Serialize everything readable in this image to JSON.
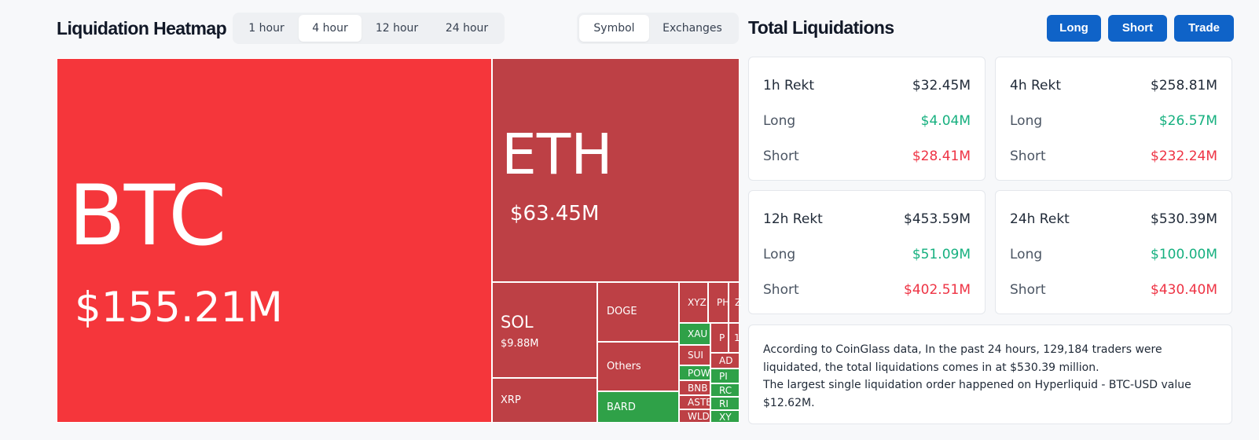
{
  "header": {
    "heatmap_title": "Liquidation Heatmap",
    "time_tabs": [
      {
        "label": "1 hour",
        "active": false
      },
      {
        "label": "4 hour",
        "active": true
      },
      {
        "label": "12 hour",
        "active": false
      },
      {
        "label": "24 hour",
        "active": false
      }
    ],
    "view_tabs": [
      {
        "label": "Symbol",
        "active": true
      },
      {
        "label": "Exchanges",
        "active": false
      }
    ],
    "total_title": "Total Liquidations",
    "actions": [
      "Long",
      "Short",
      "Trade"
    ]
  },
  "colors": {
    "btc_red": "#f5363b",
    "dark_red": "#bd4045",
    "green": "#2fa148",
    "button_blue": "#0f63c8",
    "positive_text": "#16b07f",
    "negative_text": "#ee3344"
  },
  "heatmap": {
    "tiles": [
      {
        "symbol": "BTC",
        "value": "$155.21M",
        "color": "btc_red"
      },
      {
        "symbol": "ETH",
        "value": "$63.45M",
        "color": "dark_red"
      },
      {
        "symbol": "SOL",
        "value": "$9.88M",
        "color": "dark_red"
      },
      {
        "symbol": "XRP",
        "value": "",
        "color": "dark_red"
      },
      {
        "symbol": "DOGE",
        "value": "",
        "color": "dark_red"
      },
      {
        "symbol": "Others",
        "value": "",
        "color": "dark_red"
      },
      {
        "symbol": "BARD",
        "value": "",
        "color": "green"
      },
      {
        "symbol": "XYZ",
        "value": "",
        "color": "dark_red"
      },
      {
        "symbol": "PH",
        "value": "",
        "color": "dark_red"
      },
      {
        "symbol": "Z",
        "value": "",
        "color": "dark_red"
      },
      {
        "symbol": "XAU",
        "value": "",
        "color": "green"
      },
      {
        "symbol": "P",
        "value": "",
        "color": "dark_red"
      },
      {
        "symbol": "1",
        "value": "",
        "color": "dark_red"
      },
      {
        "symbol": "SUI",
        "value": "",
        "color": "dark_red"
      },
      {
        "symbol": "POW",
        "value": "",
        "color": "green"
      },
      {
        "symbol": "BNB",
        "value": "",
        "color": "dark_red"
      },
      {
        "symbol": "ASTE",
        "value": "",
        "color": "dark_red"
      },
      {
        "symbol": "WLD",
        "value": "",
        "color": "dark_red"
      },
      {
        "symbol": "AD",
        "value": "",
        "color": "dark_red"
      },
      {
        "symbol": "PI",
        "value": "",
        "color": "green"
      },
      {
        "symbol": "RC",
        "value": "",
        "color": "green"
      },
      {
        "symbol": "RI",
        "value": "",
        "color": "green"
      },
      {
        "symbol": "XY",
        "value": "",
        "color": "green"
      }
    ]
  },
  "stats": [
    {
      "period": "1h Rekt",
      "total": "$32.45M",
      "long_label": "Long",
      "long": "$4.04M",
      "short_label": "Short",
      "short": "$28.41M"
    },
    {
      "period": "4h Rekt",
      "total": "$258.81M",
      "long_label": "Long",
      "long": "$26.57M",
      "short_label": "Short",
      "short": "$232.24M"
    },
    {
      "period": "12h Rekt",
      "total": "$453.59M",
      "long_label": "Long",
      "long": "$51.09M",
      "short_label": "Short",
      "short": "$402.51M"
    },
    {
      "period": "24h Rekt",
      "total": "$530.39M",
      "long_label": "Long",
      "long": "$100.00M",
      "short_label": "Short",
      "short": "$430.40M"
    }
  ],
  "summary": {
    "line1": "According to CoinGlass data, In the past 24 hours, 129,184 traders were liquidated, the total liquidations comes in at $530.39 million.",
    "line2": "The largest single liquidation order happened on Hyperliquid - BTC-USD value $12.62M."
  }
}
